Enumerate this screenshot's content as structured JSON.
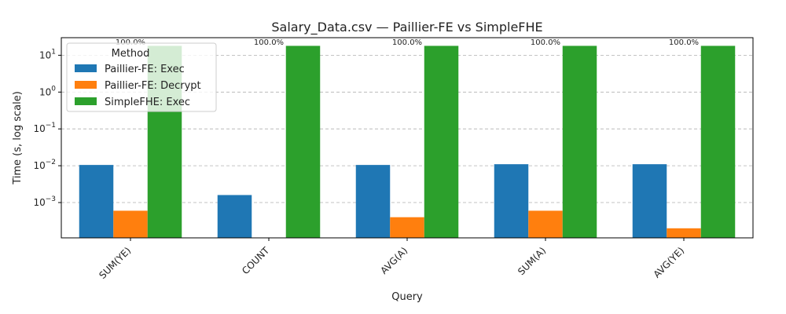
{
  "chart_data": {
    "type": "bar",
    "title": "Salary_Data.csv — Paillier-FE vs SimpleFHE",
    "xlabel": "Query",
    "ylabel": "Time (s, log scale)",
    "yscale": "log",
    "ylim": [
      0.00011,
      30
    ],
    "yticks": [
      {
        "value": 0.001,
        "base": "10",
        "exp": "−3"
      },
      {
        "value": 0.01,
        "base": "10",
        "exp": "−2"
      },
      {
        "value": 0.1,
        "base": "10",
        "exp": "−1"
      },
      {
        "value": 1,
        "base": "10",
        "exp": "0"
      },
      {
        "value": 10,
        "base": "10",
        "exp": "1"
      }
    ],
    "grid": true,
    "legend": {
      "title": "Method",
      "position": "top-left"
    },
    "categories": [
      "SUM(YE)",
      "COUNT",
      "AVG(A)",
      "SUM(A)",
      "AVG(YE)"
    ],
    "series": [
      {
        "name": "Paillier-FE: Exec",
        "color": "#1f77b4",
        "values": [
          0.0105,
          0.0016,
          0.0105,
          0.011,
          0.011
        ]
      },
      {
        "name": "Paillier-FE: Decrypt",
        "color": "#ff7f0e",
        "values": [
          0.0006,
          null,
          0.0004,
          0.0006,
          0.0002
        ]
      },
      {
        "name": "SimpleFHE: Exec",
        "color": "#2ca02c",
        "values": [
          18,
          18,
          18,
          18,
          18
        ]
      }
    ],
    "data_labels": [
      "100.0%",
      "100.0%",
      "100.0%",
      "100.0%",
      "100.0%"
    ]
  }
}
